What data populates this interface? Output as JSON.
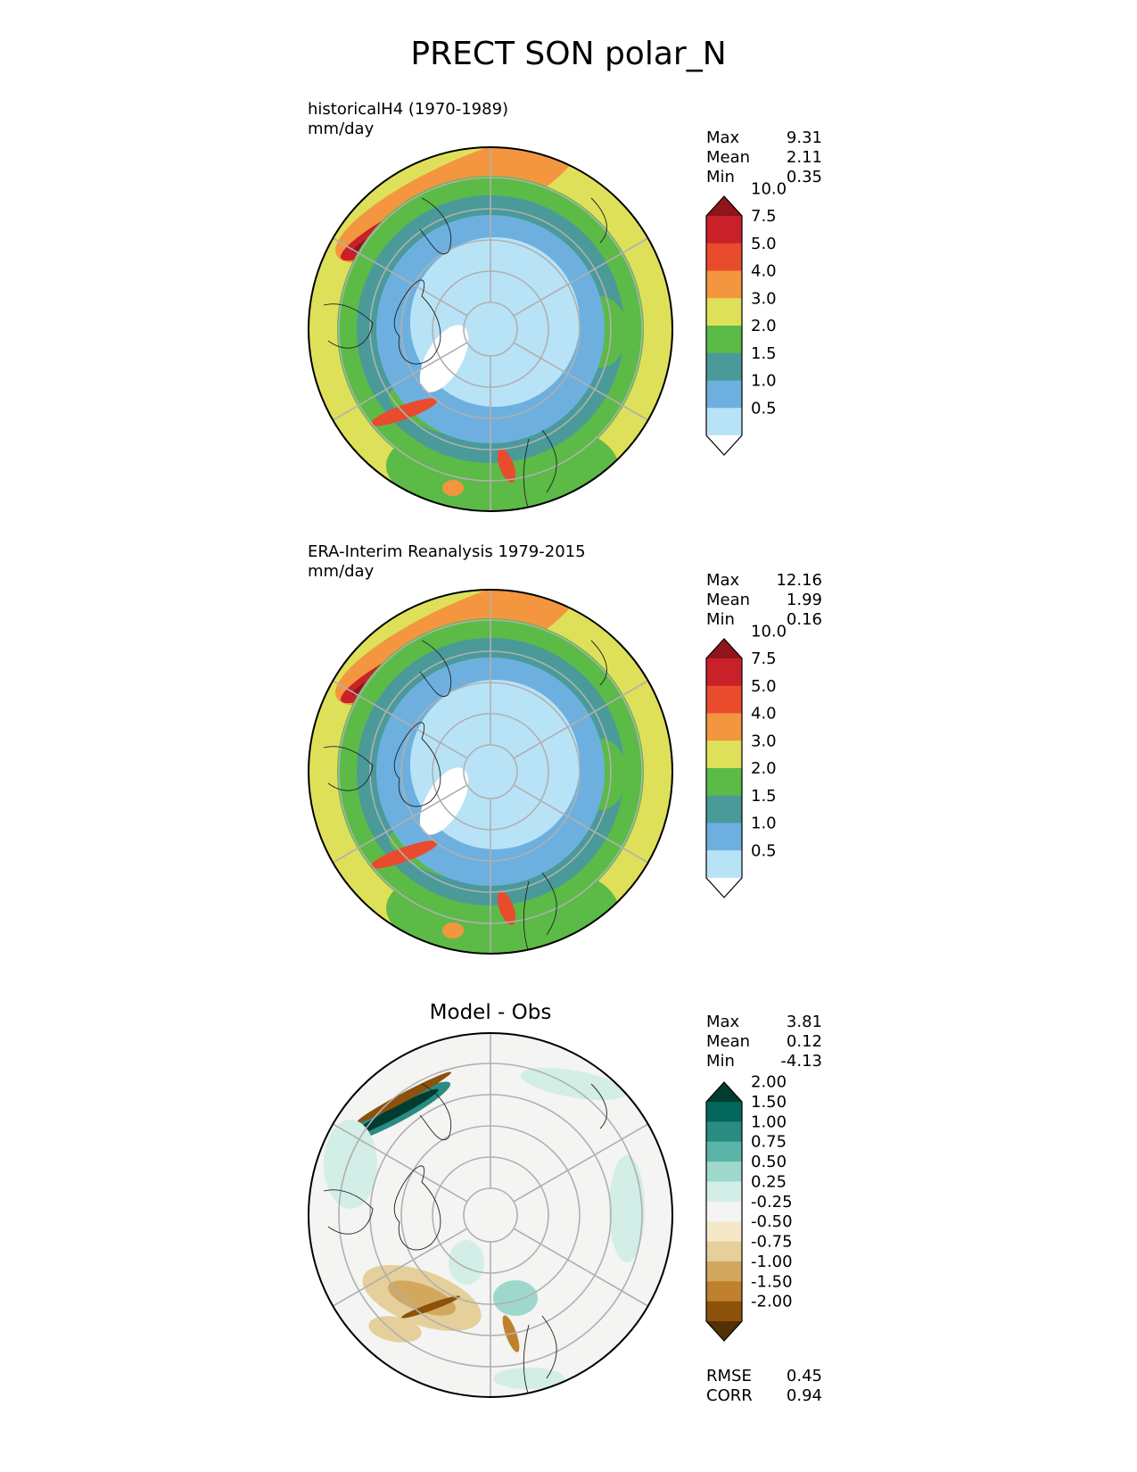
{
  "figure_title": "PRECT SON polar_N",
  "panels": [
    {
      "id": "model",
      "title_line1": "historicalH4 (1970-1989)",
      "title_line2": "mm/day",
      "stats": [
        {
          "label": "Max",
          "value": "9.31"
        },
        {
          "label": "Mean",
          "value": "2.11"
        },
        {
          "label": "Min",
          "value": "0.35"
        }
      ]
    },
    {
      "id": "obs",
      "title_line1": "ERA-Interim Reanalysis 1979-2015",
      "title_line2": "mm/day",
      "stats": [
        {
          "label": "Max",
          "value": "12.16"
        },
        {
          "label": "Mean",
          "value": "1.99"
        },
        {
          "label": "Min",
          "value": "0.16"
        }
      ]
    },
    {
      "id": "diff",
      "center_title": "Model - Obs",
      "stats": [
        {
          "label": "Max",
          "value": "3.81"
        },
        {
          "label": "Mean",
          "value": "0.12"
        },
        {
          "label": "Min",
          "value": "-4.13"
        }
      ],
      "metrics": [
        {
          "label": "RMSE",
          "value": "0.45"
        },
        {
          "label": "CORR",
          "value": "0.94"
        }
      ]
    }
  ],
  "chart_data": [
    {
      "type": "polar_contour_map",
      "projection": "north polar stereographic",
      "variable": "PRECT",
      "season": "SON",
      "title": "historicalH4 (1970-1989)",
      "units": "mm/day",
      "colorbar": {
        "levels": [
          "0.5",
          "1.0",
          "1.5",
          "2.0",
          "3.0",
          "4.0",
          "5.0",
          "7.5",
          "10.0"
        ],
        "colors": [
          "#ffffff",
          "#b8e3f7",
          "#6db0e0",
          "#4a9a9a",
          "#5cba47",
          "#dfe05a",
          "#f4963f",
          "#e84c2d",
          "#c9202a",
          "#8e1519"
        ]
      }
    },
    {
      "type": "polar_contour_map",
      "projection": "north polar stereographic",
      "variable": "PRECT",
      "season": "SON",
      "title": "ERA-Interim Reanalysis 1979-2015",
      "units": "mm/day",
      "colorbar": {
        "levels": [
          "0.5",
          "1.0",
          "1.5",
          "2.0",
          "3.0",
          "4.0",
          "5.0",
          "7.5",
          "10.0"
        ],
        "colors": [
          "#ffffff",
          "#b8e3f7",
          "#6db0e0",
          "#4a9a9a",
          "#5cba47",
          "#dfe05a",
          "#f4963f",
          "#e84c2d",
          "#c9202a",
          "#8e1519"
        ]
      }
    },
    {
      "type": "polar_contour_map",
      "projection": "north polar stereographic",
      "title": "Model - Obs",
      "colorbar": {
        "levels": [
          "-2.00",
          "-1.50",
          "-1.00",
          "-0.75",
          "-0.50",
          "-0.25",
          "0.25",
          "0.50",
          "0.75",
          "1.00",
          "1.50",
          "2.00"
        ],
        "colors": [
          "#543005",
          "#8c510a",
          "#bf812d",
          "#d2a85e",
          "#e5cf9a",
          "#f5e8c8",
          "#f4f4f2",
          "#d3ede7",
          "#9ed8cc",
          "#5bb4a8",
          "#2a8c81",
          "#02665d",
          "#003c30"
        ]
      }
    }
  ]
}
